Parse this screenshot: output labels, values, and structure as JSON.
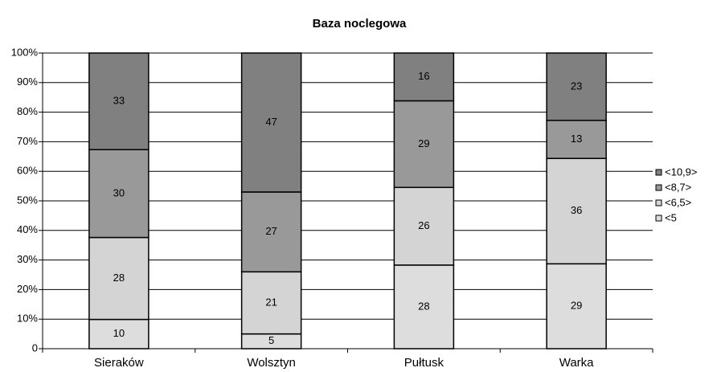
{
  "chart_data": {
    "type": "bar",
    "stacking": "percent",
    "title": "Baza noclegowa",
    "categories": [
      "Sieraków",
      "Wolsztyn",
      "Pułtusk",
      "Warka"
    ],
    "series": [
      {
        "name": "<5",
        "color": "#dddddd",
        "values": [
          10,
          5,
          28,
          29
        ]
      },
      {
        "name": "<6,5>",
        "color": "#d4d4d4",
        "values": [
          28,
          21,
          26,
          36
        ]
      },
      {
        "name": "<8,7>",
        "color": "#999999",
        "values": [
          30,
          27,
          29,
          13
        ]
      },
      {
        "name": "<10,9>",
        "color": "#808080",
        "values": [
          33,
          47,
          16,
          23
        ]
      }
    ],
    "ylim": [
      0,
      100
    ],
    "yticks": [
      0,
      {
        "value": 10,
        "label": "10%"
      },
      {
        "value": 20,
        "label": "20%"
      },
      {
        "value": 30,
        "label": "30%"
      },
      {
        "value": 40,
        "label": "40%"
      },
      {
        "value": 50,
        "label": "50%"
      },
      {
        "value": 60,
        "label": "60%"
      },
      {
        "value": 70,
        "label": "70%"
      },
      {
        "value": 80,
        "label": "80%"
      },
      {
        "value": 90,
        "label": "90%"
      },
      {
        "value": 100,
        "label": "100%"
      }
    ],
    "grid": true,
    "legend": "right"
  }
}
